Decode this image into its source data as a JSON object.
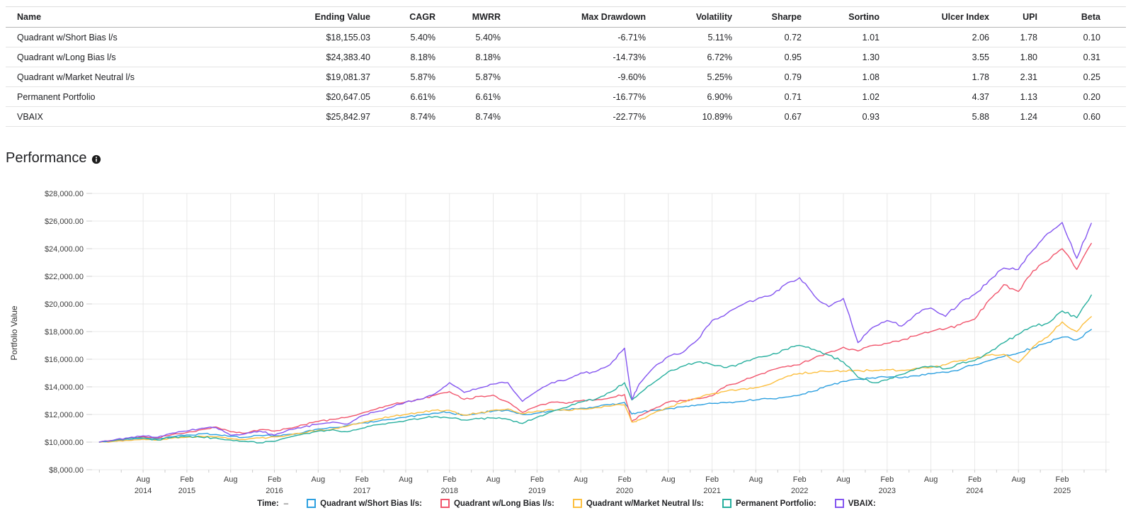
{
  "table": {
    "columns": [
      {
        "key": "name",
        "label": "Name",
        "align": "left"
      },
      {
        "key": "ending_value",
        "label": "Ending Value",
        "align": "right"
      },
      {
        "key": "cagr",
        "label": "CAGR",
        "align": "right"
      },
      {
        "key": "mwrr",
        "label": "MWRR",
        "align": "right"
      },
      {
        "key": "max_drawdown",
        "label": "Max Drawdown",
        "align": "right"
      },
      {
        "key": "volatility",
        "label": "Volatility",
        "align": "right"
      },
      {
        "key": "sharpe",
        "label": "Sharpe",
        "align": "right"
      },
      {
        "key": "sortino",
        "label": "Sortino",
        "align": "right"
      },
      {
        "key": "ulcer_index",
        "label": "Ulcer Index",
        "align": "right"
      },
      {
        "key": "upi",
        "label": "UPI",
        "align": "right"
      },
      {
        "key": "beta",
        "label": "Beta",
        "align": "right"
      }
    ],
    "rows": [
      {
        "name": "Quadrant w/Short Bias l/s",
        "ending_value": "$18,155.03",
        "cagr": "5.40%",
        "mwrr": "5.40%",
        "max_drawdown": "-6.71%",
        "volatility": "5.11%",
        "sharpe": "0.72",
        "sortino": "1.01",
        "ulcer_index": "2.06",
        "upi": "1.78",
        "beta": "0.10"
      },
      {
        "name": "Quadrant w/Long Bias l/s",
        "ending_value": "$24,383.40",
        "cagr": "8.18%",
        "mwrr": "8.18%",
        "max_drawdown": "-14.73%",
        "volatility": "6.72%",
        "sharpe": "0.95",
        "sortino": "1.30",
        "ulcer_index": "3.55",
        "upi": "1.80",
        "beta": "0.31"
      },
      {
        "name": "Quadrant w/Market Neutral l/s",
        "ending_value": "$19,081.37",
        "cagr": "5.87%",
        "mwrr": "5.87%",
        "max_drawdown": "-9.60%",
        "volatility": "5.25%",
        "sharpe": "0.79",
        "sortino": "1.08",
        "ulcer_index": "1.78",
        "upi": "2.31",
        "beta": "0.25"
      },
      {
        "name": "Permanent Portfolio",
        "ending_value": "$20,647.05",
        "cagr": "6.61%",
        "mwrr": "6.61%",
        "max_drawdown": "-16.77%",
        "volatility": "6.90%",
        "sharpe": "0.71",
        "sortino": "1.02",
        "ulcer_index": "4.37",
        "upi": "1.13",
        "beta": "0.20"
      },
      {
        "name": "VBAIX",
        "ending_value": "$25,842.97",
        "cagr": "8.74%",
        "mwrr": "8.74%",
        "max_drawdown": "-22.77%",
        "volatility": "10.89%",
        "sharpe": "0.67",
        "sortino": "0.93",
        "ulcer_index": "5.88",
        "upi": "1.24",
        "beta": "0.60"
      }
    ]
  },
  "performance": {
    "title": "Performance",
    "y_axis_label": "Portfolio Value"
  },
  "legend": {
    "time_label": "Time:",
    "time_value": "–",
    "items": [
      {
        "label": "Quadrant w/Short Bias l/s:",
        "color": "#2da0e0"
      },
      {
        "label": "Quadrant w/Long Bias l/s:",
        "color": "#f1556c"
      },
      {
        "label": "Quadrant w/Market Neutral l/s:",
        "color": "#fcbf3f"
      },
      {
        "label": "Permanent Portfolio:",
        "color": "#27af9e"
      },
      {
        "label": "VBAIX:",
        "color": "#8455f0"
      }
    ]
  },
  "colors": {
    "grid": "#e8e8e8",
    "tick": "#cccccc",
    "axis_text": "#3d3d3d",
    "table_text": "#202124"
  },
  "chart_data": {
    "type": "line",
    "title": "Performance",
    "xlabel": "Time",
    "ylabel": "Portfolio Value",
    "x_unit": "months since Feb 2014",
    "ylim": [
      8000,
      28000
    ],
    "grid": true,
    "legend_position": "bottom",
    "y_ticks": [
      {
        "v": 8000,
        "label": "$8,000.00"
      },
      {
        "v": 10000,
        "label": "$10,000.00"
      },
      {
        "v": 12000,
        "label": "$12,000.00"
      },
      {
        "v": 14000,
        "label": "$14,000.00"
      },
      {
        "v": 16000,
        "label": "$16,000.00"
      },
      {
        "v": 18000,
        "label": "$18,000.00"
      },
      {
        "v": 20000,
        "label": "$20,000.00"
      },
      {
        "v": 22000,
        "label": "$22,000.00"
      },
      {
        "v": 24000,
        "label": "$24,000.00"
      },
      {
        "v": 26000,
        "label": "$26,000.00"
      },
      {
        "v": 28000,
        "label": "$28,000.00"
      }
    ],
    "x_ticks": [
      {
        "m": 6,
        "l1": "Aug",
        "l2": "2014"
      },
      {
        "m": 12,
        "l1": "Feb",
        "l2": "2015"
      },
      {
        "m": 18,
        "l1": "Aug",
        "l2": ""
      },
      {
        "m": 24,
        "l1": "Feb",
        "l2": "2016"
      },
      {
        "m": 30,
        "l1": "Aug",
        "l2": ""
      },
      {
        "m": 36,
        "l1": "Feb",
        "l2": "2017"
      },
      {
        "m": 42,
        "l1": "Aug",
        "l2": ""
      },
      {
        "m": 48,
        "l1": "Feb",
        "l2": "2018"
      },
      {
        "m": 54,
        "l1": "Aug",
        "l2": ""
      },
      {
        "m": 60,
        "l1": "Feb",
        "l2": "2019"
      },
      {
        "m": 66,
        "l1": "Aug",
        "l2": ""
      },
      {
        "m": 72,
        "l1": "Feb",
        "l2": "2020"
      },
      {
        "m": 78,
        "l1": "Aug",
        "l2": ""
      },
      {
        "m": 84,
        "l1": "Feb",
        "l2": "2021"
      },
      {
        "m": 90,
        "l1": "Aug",
        "l2": ""
      },
      {
        "m": 96,
        "l1": "Feb",
        "l2": "2022"
      },
      {
        "m": 102,
        "l1": "Aug",
        "l2": ""
      },
      {
        "m": 108,
        "l1": "Feb",
        "l2": "2023"
      },
      {
        "m": 114,
        "l1": "Aug",
        "l2": ""
      },
      {
        "m": 120,
        "l1": "Feb",
        "l2": "2024"
      },
      {
        "m": 126,
        "l1": "Aug",
        "l2": ""
      },
      {
        "m": 132,
        "l1": "Feb",
        "l2": "2025"
      },
      {
        "m": 138,
        "l1": "",
        "l2": ""
      }
    ],
    "x": [
      0,
      2,
      4,
      6,
      8,
      10,
      12,
      14,
      16,
      18,
      20,
      22,
      24,
      26,
      28,
      30,
      32,
      34,
      36,
      38,
      40,
      42,
      44,
      46,
      48,
      50,
      52,
      54,
      56,
      58,
      60,
      62,
      64,
      66,
      68,
      70,
      72,
      73,
      74,
      76,
      78,
      80,
      82,
      84,
      86,
      88,
      90,
      92,
      94,
      96,
      98,
      100,
      102,
      104,
      106,
      108,
      110,
      112,
      114,
      116,
      118,
      120,
      122,
      124,
      126,
      128,
      130,
      132,
      134,
      136
    ],
    "series": [
      {
        "name": "Quadrant w/Short Bias l/s",
        "color": "#2da0e0",
        "values": [
          10000,
          10080,
          10160,
          10280,
          10230,
          10380,
          10520,
          10600,
          10550,
          10420,
          10350,
          10480,
          10450,
          10560,
          10700,
          10950,
          11050,
          11200,
          11380,
          11500,
          11650,
          11800,
          11950,
          12100,
          12150,
          11950,
          12100,
          12250,
          12300,
          12000,
          12100,
          12250,
          12350,
          12450,
          12550,
          12700,
          12870,
          12030,
          12150,
          12300,
          12420,
          12550,
          12700,
          12800,
          12850,
          12950,
          13050,
          13150,
          13250,
          13400,
          13700,
          14100,
          14400,
          14550,
          14650,
          14700,
          14650,
          14800,
          14950,
          15050,
          15250,
          15600,
          15900,
          16200,
          16450,
          16800,
          17200,
          17600,
          17400,
          18155
        ]
      },
      {
        "name": "Quadrant w/Long Bias l/s",
        "color": "#f1556c",
        "values": [
          10000,
          10120,
          10250,
          10400,
          10300,
          10550,
          10700,
          10900,
          11100,
          10750,
          10650,
          10900,
          10800,
          11000,
          11250,
          11500,
          11650,
          11800,
          12100,
          12400,
          12700,
          12900,
          13100,
          13400,
          13650,
          13100,
          13300,
          13400,
          12900,
          12150,
          12600,
          12900,
          12800,
          13000,
          13050,
          13200,
          13440,
          11480,
          11900,
          12400,
          12900,
          13000,
          13150,
          13350,
          14100,
          14400,
          14800,
          15200,
          15450,
          15600,
          16100,
          16500,
          16870,
          16600,
          17000,
          17150,
          17400,
          17700,
          18000,
          18200,
          18500,
          18900,
          20300,
          21400,
          20900,
          22400,
          23100,
          24000,
          22500,
          24383
        ]
      },
      {
        "name": "Quadrant w/Market Neutral l/s",
        "color": "#fcbf3f",
        "values": [
          10000,
          10060,
          10120,
          10200,
          10150,
          10280,
          10350,
          10420,
          10380,
          10250,
          10180,
          10300,
          10380,
          10500,
          10650,
          10850,
          10950,
          11150,
          11400,
          11650,
          11850,
          12000,
          12150,
          12300,
          12300,
          11950,
          12100,
          12300,
          12400,
          12050,
          12250,
          12350,
          12300,
          12400,
          12500,
          12600,
          12700,
          11450,
          11600,
          12100,
          12500,
          12900,
          13200,
          13500,
          13700,
          13850,
          13950,
          14200,
          14700,
          14970,
          15050,
          15100,
          15150,
          15200,
          15150,
          15250,
          15200,
          15350,
          15400,
          15600,
          15900,
          16100,
          16300,
          16350,
          15750,
          16900,
          17600,
          18700,
          18000,
          19081
        ]
      },
      {
        "name": "Permanent Portfolio",
        "color": "#27af9e",
        "values": [
          10000,
          10100,
          10250,
          10300,
          10150,
          10350,
          10400,
          10350,
          10300,
          10150,
          10050,
          9950,
          10050,
          10350,
          10600,
          10800,
          10900,
          10750,
          11000,
          11250,
          11400,
          11550,
          11700,
          11850,
          11750,
          11600,
          11700,
          11750,
          11650,
          11350,
          11800,
          12200,
          12500,
          12900,
          13100,
          13600,
          14300,
          13050,
          13500,
          14300,
          15100,
          15500,
          15800,
          15600,
          15400,
          15700,
          16100,
          16300,
          16700,
          17000,
          16700,
          16300,
          15800,
          14700,
          14300,
          14500,
          14900,
          15300,
          15500,
          15300,
          15700,
          15900,
          16500,
          17200,
          17800,
          18400,
          18600,
          19500,
          19000,
          20647
        ]
      },
      {
        "name": "VBAIX",
        "color": "#8455f0",
        "values": [
          10000,
          10150,
          10300,
          10450,
          10350,
          10650,
          10800,
          11000,
          11050,
          10500,
          10600,
          10800,
          10500,
          10900,
          11100,
          11300,
          11450,
          11300,
          11900,
          12200,
          12500,
          12900,
          13100,
          13500,
          14300,
          13600,
          13900,
          14200,
          14300,
          12950,
          13700,
          14300,
          14500,
          15000,
          15100,
          15600,
          16800,
          13100,
          14200,
          15400,
          16200,
          16500,
          17400,
          18800,
          19300,
          19900,
          20300,
          20600,
          21400,
          21900,
          20600,
          19800,
          20400,
          17200,
          18300,
          18800,
          18400,
          19300,
          19700,
          19100,
          20100,
          20700,
          21700,
          22600,
          22500,
          23900,
          25100,
          25900,
          23300,
          25843
        ]
      }
    ]
  }
}
